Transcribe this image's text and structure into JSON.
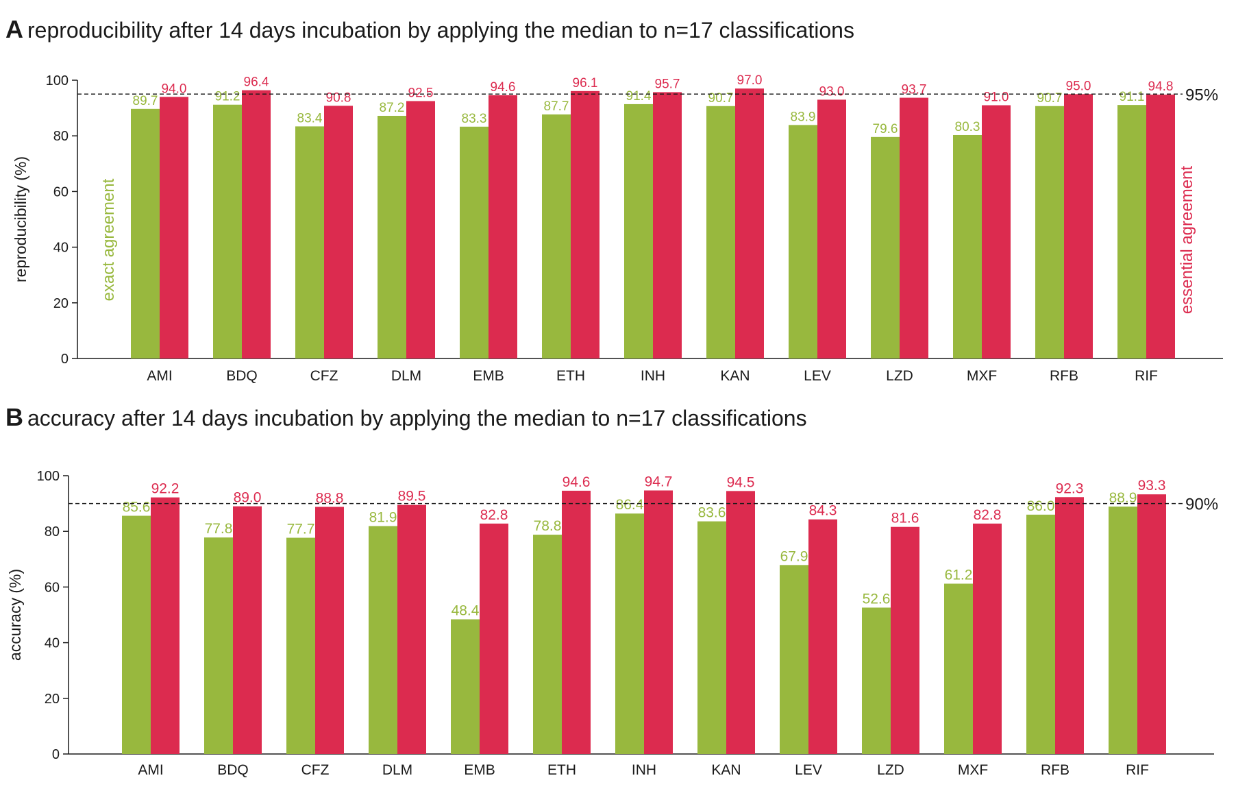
{
  "colors": {
    "exact": "#98b83e",
    "essential": "#dc2b4f",
    "axis": "#1a1a1a",
    "ref": "#1a1a1a"
  },
  "legend": {
    "exact_label": "exact agreement",
    "essential_label": "essential agreement"
  },
  "chart_data": [
    {
      "type": "bar",
      "panel": "A",
      "title": "reproducibility after 14 days incubation by applying the median to n=17 classifications",
      "ylabel": "reproducibility (%)",
      "xlabel": "",
      "ylim": [
        0,
        100
      ],
      "yticks": [
        "0",
        "20",
        "40",
        "60",
        "80",
        "100"
      ],
      "reference_line": {
        "value": 95,
        "label": "95%"
      },
      "categories": [
        "AMI",
        "BDQ",
        "CFZ",
        "DLM",
        "EMB",
        "ETH",
        "INH",
        "KAN",
        "LEV",
        "LZD",
        "MXF",
        "RFB",
        "RIF"
      ],
      "series": [
        {
          "key": "exact",
          "values": [
            89.7,
            91.2,
            83.4,
            87.2,
            83.3,
            87.7,
            91.4,
            90.7,
            83.9,
            79.6,
            80.3,
            90.7,
            91.1
          ],
          "labels": [
            "89.7",
            "91.2",
            "83.4",
            "87.2",
            "83.3",
            "87.7",
            "91.4",
            "90.7",
            "83.9",
            "79.6",
            "80.3",
            "90.7",
            "91.1"
          ]
        },
        {
          "key": "essential",
          "values": [
            94.0,
            96.4,
            90.8,
            92.5,
            94.6,
            96.1,
            95.7,
            97.0,
            93.0,
            93.7,
            91.0,
            95.0,
            94.8
          ],
          "labels": [
            "94.0",
            "96.4",
            "90.8",
            "92.5",
            "94.6",
            "96.1",
            "95.7",
            "97.0",
            "93.0",
            "93.7",
            "91.0",
            "95.0",
            "94.8"
          ]
        }
      ]
    },
    {
      "type": "bar",
      "panel": "B",
      "title": "accuracy after 14 days incubation by applying the median to n=17 classifications",
      "ylabel": "accuracy (%)",
      "xlabel": "",
      "ylim": [
        0,
        100
      ],
      "yticks": [
        "0",
        "20",
        "40",
        "60",
        "80",
        "100"
      ],
      "reference_line": {
        "value": 90,
        "label": "90%"
      },
      "categories": [
        "AMI",
        "BDQ",
        "CFZ",
        "DLM",
        "EMB",
        "ETH",
        "INH",
        "KAN",
        "LEV",
        "LZD",
        "MXF",
        "RFB",
        "RIF"
      ],
      "series": [
        {
          "key": "exact",
          "values": [
            85.6,
            77.8,
            77.7,
            81.9,
            48.4,
            78.8,
            86.4,
            83.6,
            67.9,
            52.6,
            61.2,
            86.0,
            88.9
          ],
          "labels": [
            "85.6",
            "77.8",
            "77.7",
            "81.9",
            "48.4",
            "78.8",
            "86.4",
            "83.6",
            "67.9",
            "52.6",
            "61.2",
            "86.0",
            "88.9"
          ]
        },
        {
          "key": "essential",
          "values": [
            92.2,
            89.0,
            88.8,
            89.5,
            82.8,
            94.6,
            94.7,
            94.5,
            84.3,
            81.6,
            82.8,
            92.3,
            93.3
          ],
          "labels": [
            "92.2",
            "89.0",
            "88.8",
            "89.5",
            "82.8",
            "94.6",
            "94.7",
            "94.5",
            "84.3",
            "81.6",
            "82.8",
            "92.3",
            "93.3"
          ]
        }
      ]
    }
  ]
}
